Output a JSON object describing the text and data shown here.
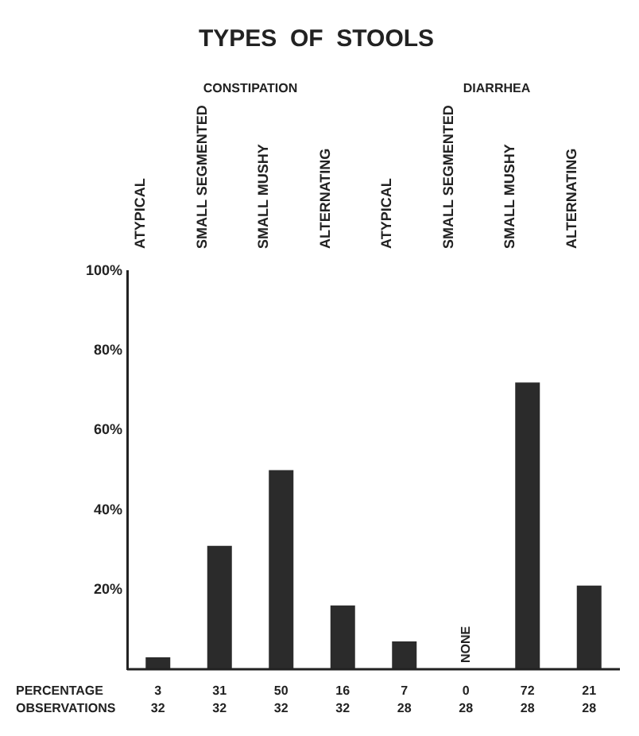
{
  "chart_data": {
    "type": "bar",
    "title": "TYPES  OF  STOOLS",
    "categories": [
      "ATYPICAL",
      "SMALL SEGMENTED",
      "SMALL MUSHY",
      "ALTERNATING",
      "ATYPICAL",
      "SMALL SEGMENTED",
      "SMALL MUSHY",
      "ALTERNATING"
    ],
    "values": [
      3,
      31,
      50,
      16,
      7,
      0,
      72,
      21
    ],
    "color": "#2b2b2b",
    "ylim": [
      0,
      100
    ],
    "yticks": [
      {
        "value": 0,
        "label": null
      },
      {
        "value": 20,
        "label": "20%"
      },
      {
        "value": 40,
        "label": "40%"
      },
      {
        "value": 60,
        "label": "60%"
      },
      {
        "value": 80,
        "label": "80%"
      },
      {
        "value": 100,
        "label": "100%"
      }
    ],
    "data_labels": true,
    "annotations": [
      "CONSTIPATION",
      "DIARRHEA",
      "PERCENTAGE",
      "OBSERVATIONS",
      "32",
      "32",
      "32",
      "32",
      "28",
      "28",
      "28",
      "28",
      "NONE"
    ]
  }
}
